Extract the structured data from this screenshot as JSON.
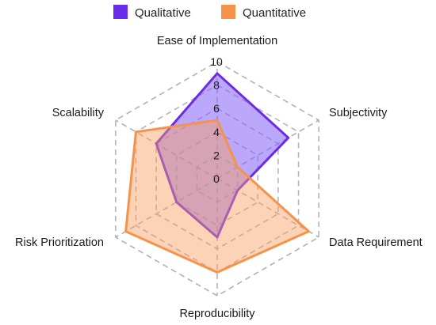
{
  "chart_data": {
    "type": "radar",
    "axes": [
      "Ease of Implementation",
      "Subjectivity",
      "Data Requirement",
      "Reproducibility",
      "Risk Prioritization",
      "Scalability"
    ],
    "ticks": [
      "0",
      "2",
      "4",
      "6",
      "8",
      "10"
    ],
    "range": [
      0,
      10
    ],
    "legend_position": "top-center",
    "grid": true,
    "series": [
      {
        "name": "Qualitative",
        "values": [
          9,
          7,
          2,
          5,
          4,
          6
        ],
        "color": "#6b2bea",
        "fill": "rgba(132, 96, 245, 0.55)"
      },
      {
        "name": "Quantitative",
        "values": [
          5,
          2,
          9,
          8,
          9,
          8
        ],
        "color": "#f7924a",
        "fill": "rgba(249, 157, 95, 0.45)"
      }
    ]
  }
}
